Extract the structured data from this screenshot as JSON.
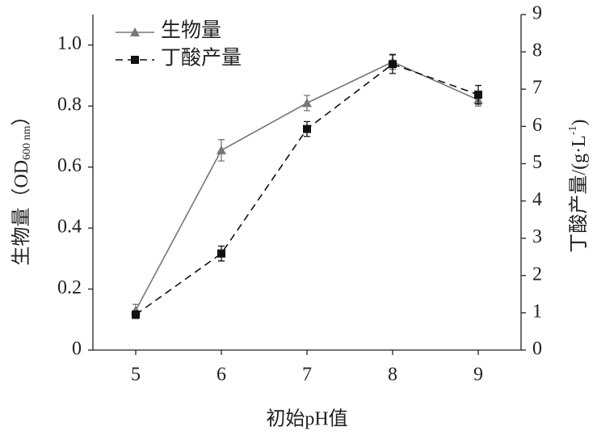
{
  "chart_data": {
    "type": "line",
    "xlabel": "初始pH值",
    "ylabel": "生物量（OD",
    "ylabel_sub": "600 nm",
    "ylabel_end": "）",
    "y2label": "丁酸产量/(g·L",
    "y2label_sup": "-1",
    "y2label_end": ")",
    "x": [
      5,
      6,
      7,
      8,
      9
    ],
    "xlim": [
      4.5,
      9.5
    ],
    "xticks": [
      5,
      6,
      7,
      8,
      9
    ],
    "ylim": [
      0,
      1.1
    ],
    "yticks": [
      0,
      0.2,
      0.4,
      0.6,
      0.8,
      {
        "value": 1,
        "label": "1.0"
      }
    ],
    "y2lim": [
      0,
      9
    ],
    "y2ticks": [
      0,
      1,
      2,
      3,
      4,
      5,
      6,
      7,
      8,
      9
    ],
    "legend": "upper left",
    "series": [
      {
        "name": "生物量",
        "color": "#777777",
        "marker": "triangle",
        "dash": false,
        "values": [
          0.13,
          0.655,
          0.81,
          0.945,
          0.82
        ],
        "errors": [
          0.02,
          0.035,
          0.025,
          0.025,
          0.02
        ]
      },
      {
        "name": "丁酸产量",
        "color": "#111111",
        "marker": "square",
        "dash": true,
        "axis": "y2",
        "values": [
          0.95,
          2.59,
          5.93,
          7.67,
          6.85
        ],
        "errors": [
          0.1,
          0.2,
          0.2,
          0.25,
          0.25
        ]
      }
    ]
  }
}
